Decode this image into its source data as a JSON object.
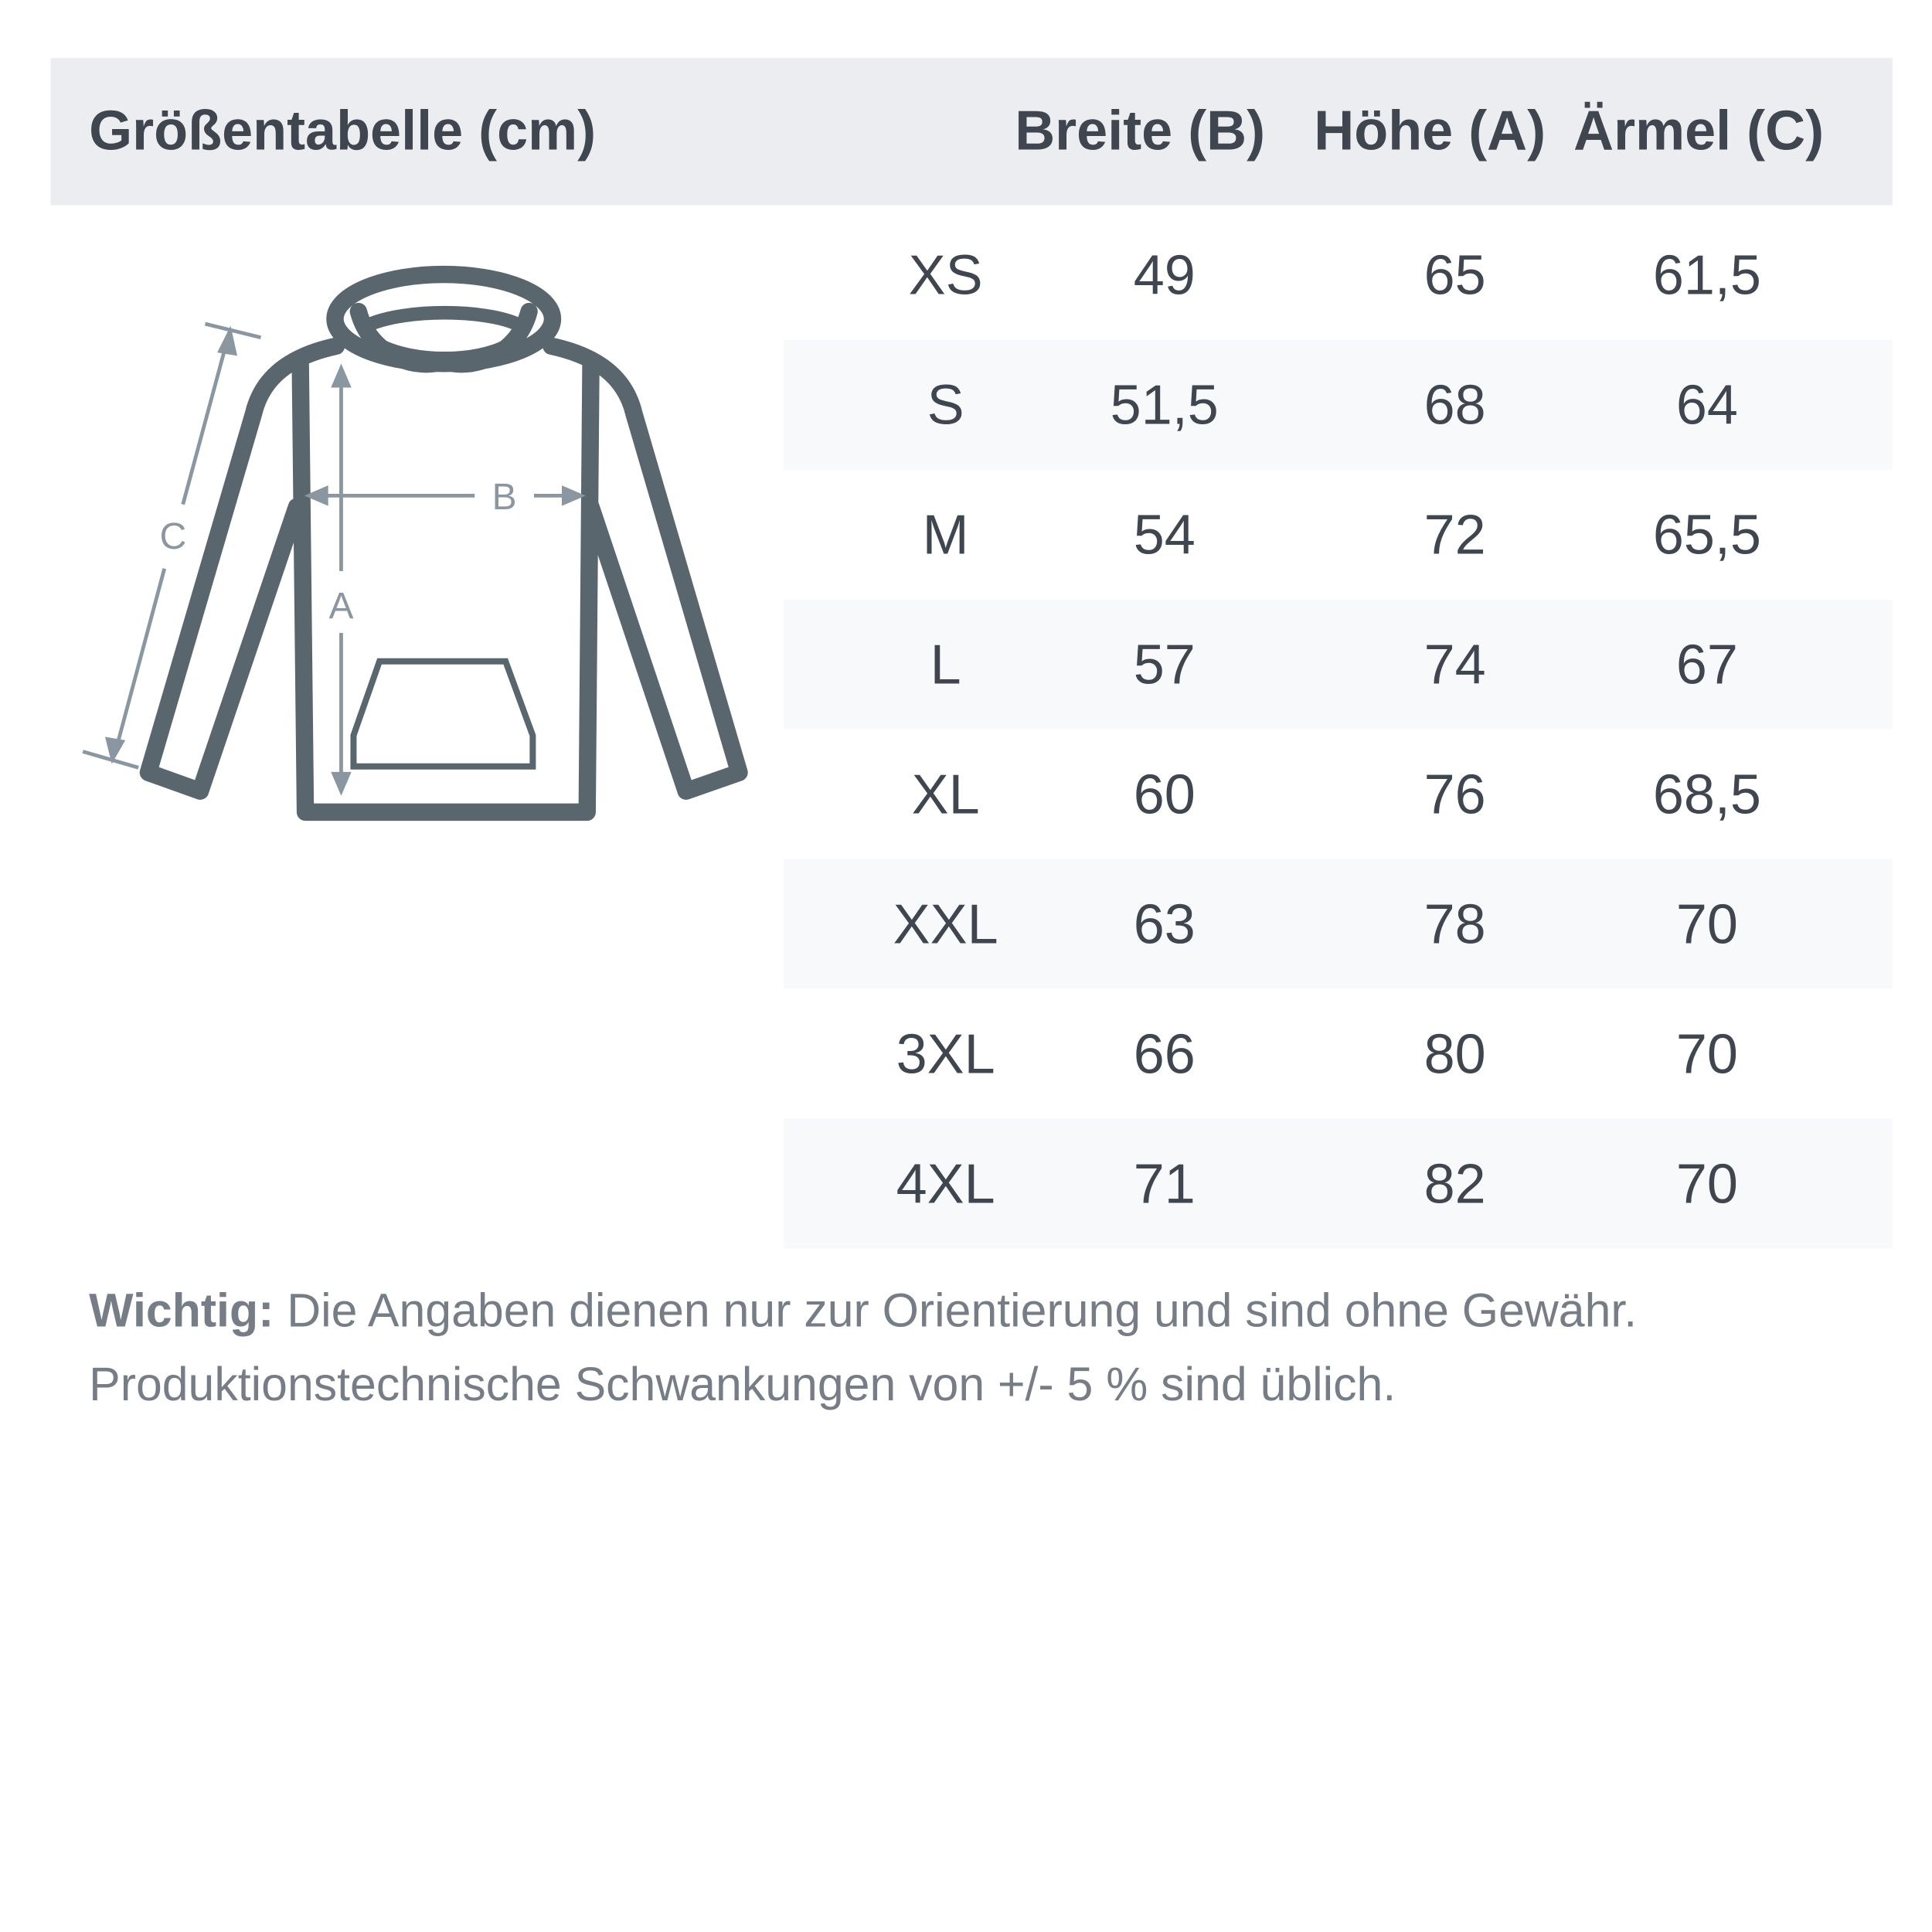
{
  "title": "Größentabelle (cm)",
  "columns": [
    "Breite (B)",
    "Höhe (A)",
    "Ärmel (C)"
  ],
  "rows": [
    {
      "size": "XS",
      "b": "49",
      "a": "65",
      "c": "61,5"
    },
    {
      "size": "S",
      "b": "51,5",
      "a": "68",
      "c": "64"
    },
    {
      "size": "M",
      "b": "54",
      "a": "72",
      "c": "65,5"
    },
    {
      "size": "L",
      "b": "57",
      "a": "74",
      "c": "67"
    },
    {
      "size": "XL",
      "b": "60",
      "a": "76",
      "c": "68,5"
    },
    {
      "size": "XXL",
      "b": "63",
      "a": "78",
      "c": "70"
    },
    {
      "size": "3XL",
      "b": "66",
      "a": "80",
      "c": "70"
    },
    {
      "size": "4XL",
      "b": "71",
      "a": "82",
      "c": "70"
    }
  ],
  "diagram": {
    "labels": {
      "a": "A",
      "b": "B",
      "c": "C"
    },
    "icon": "hoodie-measurement-icon"
  },
  "footnote": {
    "bold": "Wichtig:",
    "line1": " Die Angaben dienen nur zur Orientierung und sind ohne Gewähr.",
    "line2": "Produktionstechnische Schwankungen von +/- 5 % sind üblich."
  },
  "colors": {
    "header_bg": "#ebedf0",
    "stripe_bg": "#f8f9fb",
    "text": "#3f4650",
    "hoodie": "#5a666d",
    "measure": "#8a96a0"
  }
}
